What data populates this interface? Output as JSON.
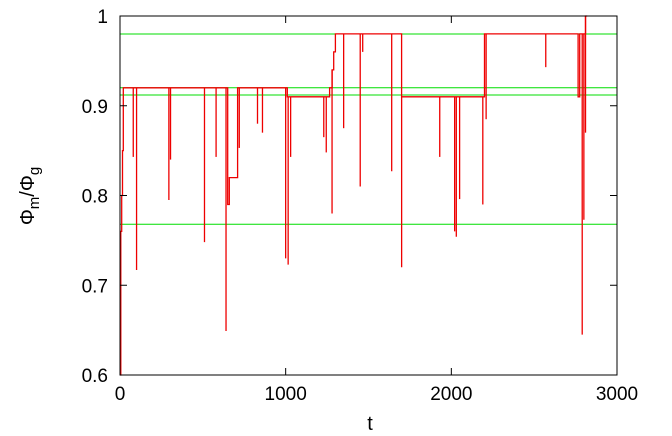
{
  "chart_data": {
    "type": "line",
    "xlabel": "t",
    "ylabel_main": "Φ",
    "ylabel_sub_num": "m",
    "ylabel_slash": "/",
    "ylabel_sub_den": "g",
    "xlim": [
      0,
      3000
    ],
    "ylim": [
      0.6,
      1.0
    ],
    "x_ticks": [
      0,
      1000,
      2000,
      3000
    ],
    "x_tick_labels": [
      "0",
      "1000",
      "2000",
      "3000"
    ],
    "y_ticks": [
      0.6,
      0.7,
      0.8,
      0.9,
      1.0
    ],
    "y_tick_labels": [
      "0.6",
      "0.7",
      "0.8",
      "0.9",
      "1"
    ],
    "grid": false,
    "reference_lines": [
      0.98,
      0.92,
      0.912,
      0.768
    ],
    "reference_color": "#00dd00",
    "series": [
      {
        "color": "#ee0000",
        "steps": [
          [
            0,
            0.6
          ],
          [
            5,
            0.76
          ],
          [
            10,
            0.8
          ],
          [
            15,
            0.85
          ],
          [
            20,
            0.92
          ],
          [
            300,
            0.92
          ],
          [
            320,
            0.92
          ],
          [
            640,
            0.92
          ],
          [
            650,
            0.79
          ],
          [
            660,
            0.82
          ],
          [
            700,
            0.82
          ],
          [
            710,
            0.92
          ],
          [
            1000,
            0.92
          ],
          [
            1010,
            0.91
          ],
          [
            1260,
            0.91
          ],
          [
            1265,
            0.92
          ],
          [
            1280,
            0.94
          ],
          [
            1290,
            0.96
          ],
          [
            1300,
            0.98
          ],
          [
            1695,
            0.98
          ],
          [
            1700,
            0.91
          ],
          [
            2190,
            0.91
          ],
          [
            2200,
            0.98
          ],
          [
            2760,
            0.98
          ],
          [
            2765,
            0.91
          ],
          [
            2775,
            0.98
          ],
          [
            2800,
            0.98
          ],
          [
            2810,
            1.0
          ],
          [
            2820,
            1.0
          ]
        ],
        "spikes": [
          [
            295,
            0.795
          ],
          [
            305,
            0.84
          ],
          [
            80,
            0.843
          ],
          [
            100,
            0.717
          ],
          [
            510,
            0.748
          ],
          [
            580,
            0.843
          ],
          [
            640,
            0.649
          ],
          [
            720,
            0.853
          ],
          [
            830,
            0.88
          ],
          [
            860,
            0.87
          ],
          [
            1000,
            0.73
          ],
          [
            1015,
            0.723
          ],
          [
            1030,
            0.843
          ],
          [
            1230,
            0.865
          ],
          [
            1245,
            0.848
          ],
          [
            1280,
            0.78
          ],
          [
            1350,
            0.875
          ],
          [
            1450,
            0.81
          ],
          [
            1465,
            0.96
          ],
          [
            1640,
            0.827
          ],
          [
            1700,
            0.72
          ],
          [
            1930,
            0.843
          ],
          [
            2020,
            0.76
          ],
          [
            2030,
            0.754
          ],
          [
            2050,
            0.796
          ],
          [
            2190,
            0.79
          ],
          [
            2210,
            0.885
          ],
          [
            2570,
            0.943
          ],
          [
            2790,
            0.645
          ],
          [
            2800,
            0.773
          ],
          [
            2810,
            0.87
          ]
        ]
      }
    ]
  }
}
